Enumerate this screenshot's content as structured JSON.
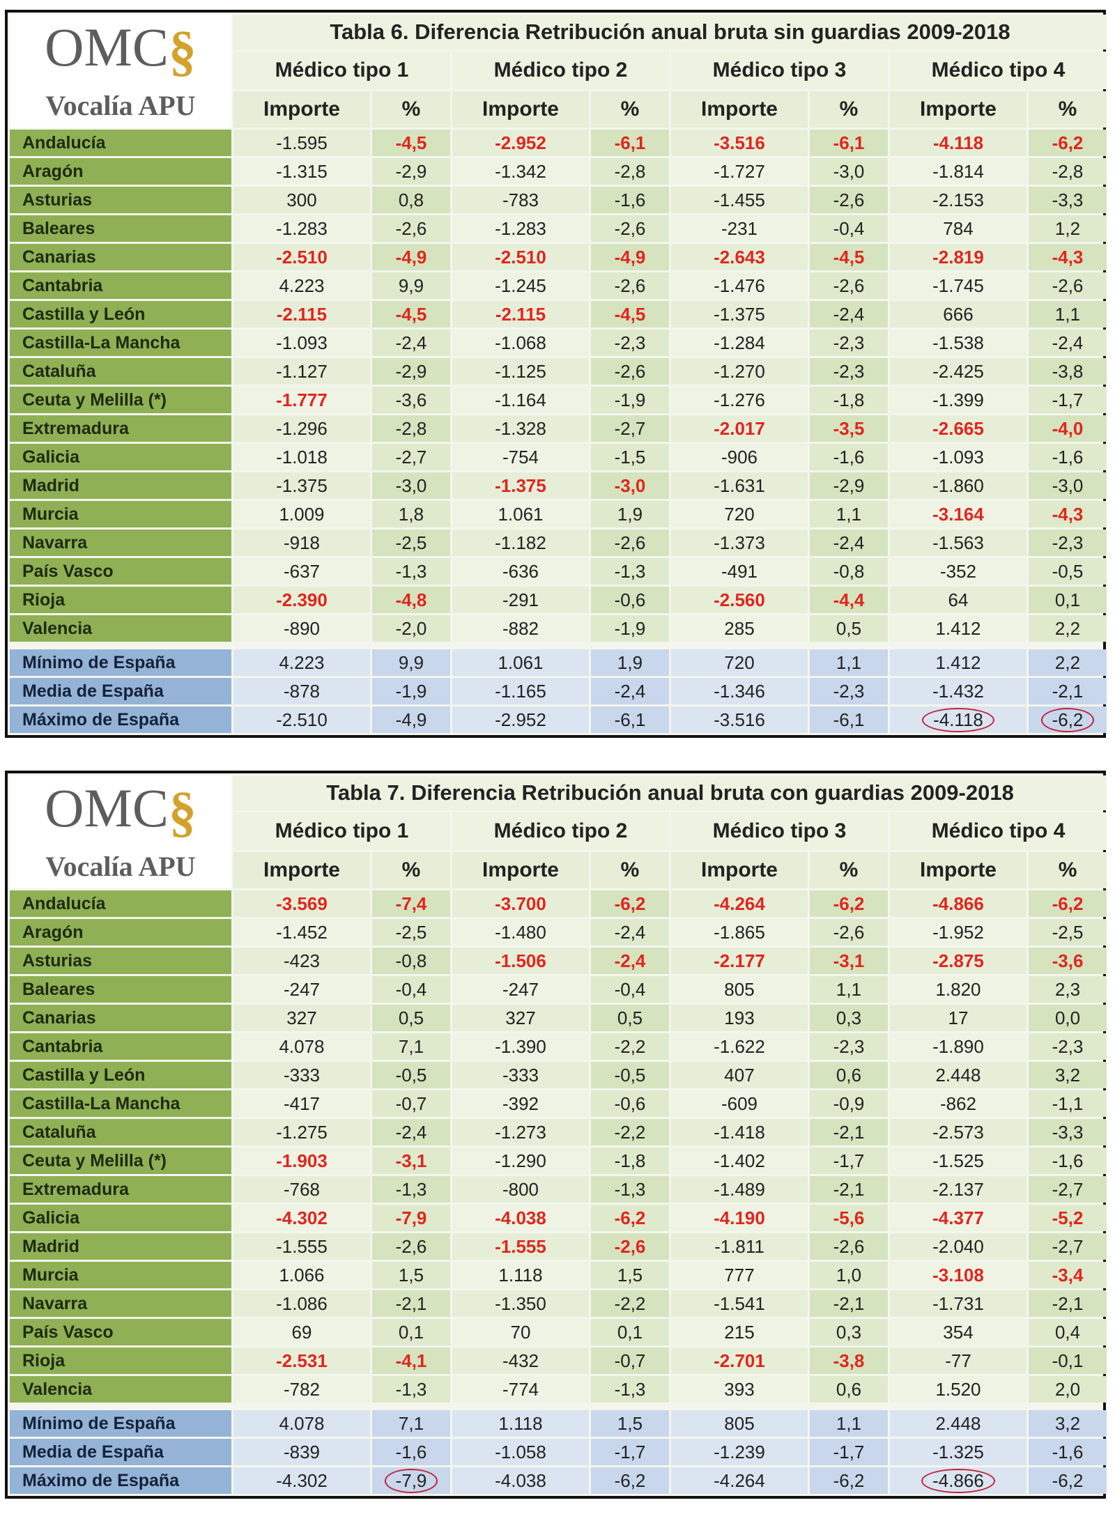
{
  "logo": {
    "mark": "OMC",
    "symbol": "§",
    "subtitle": "Vocalía APU"
  },
  "tables": [
    {
      "title": "Tabla 6. Diferencia Retribución anual bruta sin guardias 2009-2018",
      "groups": [
        "Médico tipo  1",
        "Médico tipo  2",
        "Médico tipo  3",
        "Médico tipo  4"
      ],
      "subheaders": [
        "Importe",
        "%"
      ],
      "rows": [
        {
          "region": "Andalucía",
          "values": [
            "-1.595",
            "-4,5",
            "-2.952",
            "-6,1",
            "-3.516",
            "-6,1",
            "-4.118",
            "-6,2"
          ],
          "highlighted": [
            1,
            2,
            3,
            4,
            5,
            6,
            7
          ]
        },
        {
          "region": "Aragón",
          "values": [
            "-1.315",
            "-2,9",
            "-1.342",
            "-2,8",
            "-1.727",
            "-3,0",
            "-1.814",
            "-2,8"
          ]
        },
        {
          "region": "Asturias",
          "values": [
            "300",
            "0,8",
            "-783",
            "-1,6",
            "-1.455",
            "-2,6",
            "-2.153",
            "-3,3"
          ]
        },
        {
          "region": "Baleares",
          "values": [
            "-1.283",
            "-2,6",
            "-1.283",
            "-2,6",
            "-231",
            "-0,4",
            "784",
            "1,2"
          ]
        },
        {
          "region": "Canarias",
          "values": [
            "-2.510",
            "-4,9",
            "-2.510",
            "-4,9",
            "-2.643",
            "-4,5",
            "-2.819",
            "-4,3"
          ],
          "highlighted": [
            0,
            1,
            2,
            3,
            4,
            5,
            6,
            7
          ]
        },
        {
          "region": "Cantabria",
          "values": [
            "4.223",
            "9,9",
            "-1.245",
            "-2,6",
            "-1.476",
            "-2,6",
            "-1.745",
            "-2,6"
          ]
        },
        {
          "region": "Castilla y León",
          "values": [
            "-2.115",
            "-4,5",
            "-2.115",
            "-4,5",
            "-1.375",
            "-2,4",
            "666",
            "1,1"
          ],
          "highlighted": [
            0,
            1,
            2,
            3
          ]
        },
        {
          "region": "Castilla-La Mancha",
          "values": [
            "-1.093",
            "-2,4",
            "-1.068",
            "-2,3",
            "-1.284",
            "-2,3",
            "-1.538",
            "-2,4"
          ]
        },
        {
          "region": "Cataluña",
          "values": [
            "-1.127",
            "-2,9",
            "-1.125",
            "-2,6",
            "-1.270",
            "-2,3",
            "-2.425",
            "-3,8"
          ]
        },
        {
          "region": "Ceuta y Melilla (*)",
          "values": [
            "-1.777",
            "-3,6",
            "-1.164",
            "-1,9",
            "-1.276",
            "-1,8",
            "-1.399",
            "-1,7"
          ],
          "highlighted": [
            0
          ]
        },
        {
          "region": "Extremadura",
          "values": [
            "-1.296",
            "-2,8",
            "-1.328",
            "-2,7",
            "-2.017",
            "-3,5",
            "-2.665",
            "-4,0"
          ],
          "highlighted": [
            4,
            5,
            6,
            7
          ]
        },
        {
          "region": "Galicia",
          "values": [
            "-1.018",
            "-2,7",
            "-754",
            "-1,5",
            "-906",
            "-1,6",
            "-1.093",
            "-1,6"
          ]
        },
        {
          "region": "Madrid",
          "values": [
            "-1.375",
            "-3,0",
            "-1.375",
            "-3,0",
            "-1.631",
            "-2,9",
            "-1.860",
            "-3,0"
          ],
          "highlighted": [
            2,
            3
          ]
        },
        {
          "region": "Murcia",
          "values": [
            "1.009",
            "1,8",
            "1.061",
            "1,9",
            "720",
            "1,1",
            "-3.164",
            "-4,3"
          ],
          "highlighted": [
            6,
            7
          ]
        },
        {
          "region": "Navarra",
          "values": [
            "-918",
            "-2,5",
            "-1.182",
            "-2,6",
            "-1.373",
            "-2,4",
            "-1.563",
            "-2,3"
          ]
        },
        {
          "region": "País Vasco",
          "values": [
            "-637",
            "-1,3",
            "-636",
            "-1,3",
            "-491",
            "-0,8",
            "-352",
            "-0,5"
          ]
        },
        {
          "region": "Rioja",
          "values": [
            "-2.390",
            "-4,8",
            "-291",
            "-0,6",
            "-2.560",
            "-4,4",
            "64",
            "0,1"
          ],
          "highlighted": [
            0,
            1,
            4,
            5
          ]
        },
        {
          "region": "Valencia",
          "values": [
            "-890",
            "-2,0",
            "-882",
            "-1,9",
            "285",
            "0,5",
            "1.412",
            "2,2"
          ]
        }
      ],
      "summary": [
        {
          "region": "Mínimo de España",
          "values": [
            "4.223",
            "9,9",
            "1.061",
            "1,9",
            "720",
            "1,1",
            "1.412",
            "2,2"
          ]
        },
        {
          "region": "Media de España",
          "values": [
            "-878",
            "-1,9",
            "-1.165",
            "-2,4",
            "-1.346",
            "-2,3",
            "-1.432",
            "-2,1"
          ]
        },
        {
          "region": "Máximo de España",
          "values": [
            "-2.510",
            "-4,9",
            "-2.952",
            "-6,1",
            "-3.516",
            "-6,1",
            "-4.118",
            "-6,2"
          ],
          "circled": [
            6,
            7
          ]
        }
      ]
    },
    {
      "title": "Tabla 7. Diferencia Retribución anual bruta con guardias 2009-2018",
      "groups": [
        "Médico tipo  1",
        "Médico tipo  2",
        "Médico tipo  3",
        "Médico tipo  4"
      ],
      "subheaders": [
        "Importe",
        "%"
      ],
      "rows": [
        {
          "region": "Andalucía",
          "values": [
            "-3.569",
            "-7,4",
            "-3.700",
            "-6,2",
            "-4.264",
            "-6,2",
            "-4.866",
            "-6,2"
          ],
          "highlighted": [
            0,
            1,
            2,
            3,
            4,
            5,
            6,
            7
          ]
        },
        {
          "region": "Aragón",
          "values": [
            "-1.452",
            "-2,5",
            "-1.480",
            "-2,4",
            "-1.865",
            "-2,6",
            "-1.952",
            "-2,5"
          ]
        },
        {
          "region": "Asturias",
          "values": [
            "-423",
            "-0,8",
            "-1.506",
            "-2,4",
            "-2.177",
            "-3,1",
            "-2.875",
            "-3,6"
          ],
          "highlighted": [
            2,
            3,
            4,
            5,
            6,
            7
          ]
        },
        {
          "region": "Baleares",
          "values": [
            "-247",
            "-0,4",
            "-247",
            "-0,4",
            "805",
            "1,1",
            "1.820",
            "2,3"
          ]
        },
        {
          "region": "Canarias",
          "values": [
            "327",
            "0,5",
            "327",
            "0,5",
            "193",
            "0,3",
            "17",
            "0,0"
          ]
        },
        {
          "region": "Cantabria",
          "values": [
            "4.078",
            "7,1",
            "-1.390",
            "-2,2",
            "-1.622",
            "-2,3",
            "-1.890",
            "-2,3"
          ]
        },
        {
          "region": "Castilla y León",
          "values": [
            "-333",
            "-0,5",
            "-333",
            "-0,5",
            "407",
            "0,6",
            "2.448",
            "3,2"
          ]
        },
        {
          "region": "Castilla-La Mancha",
          "values": [
            "-417",
            "-0,7",
            "-392",
            "-0,6",
            "-609",
            "-0,9",
            "-862",
            "-1,1"
          ]
        },
        {
          "region": "Cataluña",
          "values": [
            "-1.275",
            "-2,4",
            "-1.273",
            "-2,2",
            "-1.418",
            "-2,1",
            "-2.573",
            "-3,3"
          ]
        },
        {
          "region": "Ceuta y Melilla (*)",
          "values": [
            "-1.903",
            "-3,1",
            "-1.290",
            "-1,8",
            "-1.402",
            "-1,7",
            "-1.525",
            "-1,6"
          ],
          "highlighted": [
            0,
            1
          ]
        },
        {
          "region": "Extremadura",
          "values": [
            "-768",
            "-1,3",
            "-800",
            "-1,3",
            "-1.489",
            "-2,1",
            "-2.137",
            "-2,7"
          ]
        },
        {
          "region": "Galicia",
          "values": [
            "-4.302",
            "-7,9",
            "-4.038",
            "-6,2",
            "-4.190",
            "-5,6",
            "-4.377",
            "-5,2"
          ],
          "highlighted": [
            0,
            1,
            2,
            3,
            4,
            5,
            6,
            7
          ]
        },
        {
          "region": "Madrid",
          "values": [
            "-1.555",
            "-2,6",
            "-1.555",
            "-2,6",
            "-1.811",
            "-2,6",
            "-2.040",
            "-2,7"
          ],
          "highlighted": [
            2,
            3
          ]
        },
        {
          "region": "Murcia",
          "values": [
            "1.066",
            "1,5",
            "1.118",
            "1,5",
            "777",
            "1,0",
            "-3.108",
            "-3,4"
          ],
          "highlighted": [
            6,
            7
          ]
        },
        {
          "region": "Navarra",
          "values": [
            "-1.086",
            "-2,1",
            "-1.350",
            "-2,2",
            "-1.541",
            "-2,1",
            "-1.731",
            "-2,1"
          ]
        },
        {
          "region": "País Vasco",
          "values": [
            "69",
            "0,1",
            "70",
            "0,1",
            "215",
            "0,3",
            "354",
            "0,4"
          ]
        },
        {
          "region": "Rioja",
          "values": [
            "-2.531",
            "-4,1",
            "-432",
            "-0,7",
            "-2.701",
            "-3,8",
            "-77",
            "-0,1"
          ],
          "highlighted": [
            0,
            1,
            4,
            5
          ]
        },
        {
          "region": "Valencia",
          "values": [
            "-782",
            "-1,3",
            "-774",
            "-1,3",
            "393",
            "0,6",
            "1.520",
            "2,0"
          ]
        }
      ],
      "summary": [
        {
          "region": "Mínimo de España",
          "values": [
            "4.078",
            "7,1",
            "1.118",
            "1,5",
            "805",
            "1,1",
            "2.448",
            "3,2"
          ]
        },
        {
          "region": "Media de España",
          "values": [
            "-839",
            "-1,6",
            "-1.058",
            "-1,7",
            "-1.239",
            "-1,7",
            "-1.325",
            "-1,6"
          ]
        },
        {
          "region": "Máximo de España",
          "values": [
            "-4.302",
            "-7,9",
            "-4.038",
            "-6,2",
            "-4.264",
            "-6,2",
            "-4.866",
            "-6,2"
          ],
          "circled": [
            1,
            6
          ]
        }
      ]
    }
  ]
}
